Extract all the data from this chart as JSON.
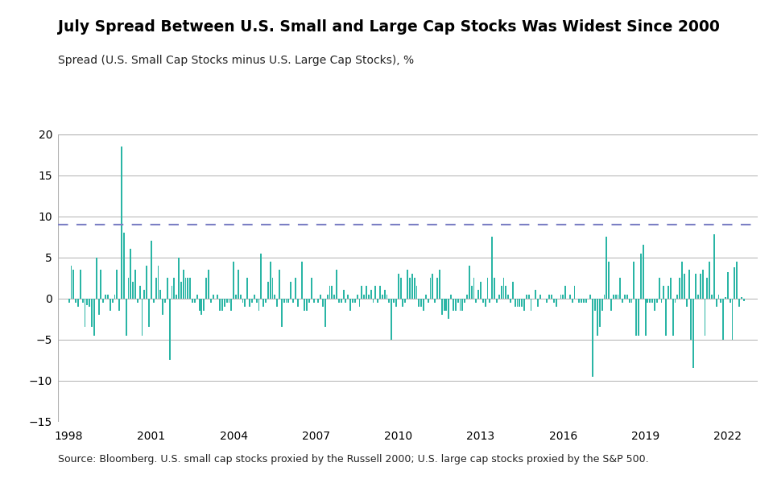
{
  "title": "July Spread Between U.S. Small and Large Cap Stocks Was Widest Since 2000",
  "subtitle": "Spread (U.S. Small Cap Stocks minus U.S. Large Cap Stocks), %",
  "source": "Source: Bloomberg. U.S. small cap stocks proxied by the Russell 2000; U.S. large cap stocks proxied by the S&P 500.",
  "dashed_line_value": 9.0,
  "ylim": [
    -15,
    20
  ],
  "yticks": [
    -15,
    -10,
    -5,
    0,
    5,
    10,
    15,
    20
  ],
  "xtick_years": [
    1998,
    2001,
    2004,
    2007,
    2010,
    2013,
    2016,
    2019,
    2022
  ],
  "bar_color": "#2ab5a5",
  "dashed_line_color": "#7b7fc4",
  "bg_color": "#ffffff",
  "grid_color": "#b0b0b0",
  "title_fontsize": 13.5,
  "subtitle_fontsize": 10,
  "source_fontsize": 9,
  "start_year": 1998,
  "start_month": 1,
  "values": [
    -0.5,
    4.0,
    3.5,
    -0.5,
    -1.0,
    3.5,
    -0.5,
    -3.5,
    -0.8,
    -1.0,
    -3.5,
    -4.5,
    5.0,
    -2.0,
    3.5,
    -0.5,
    0.5,
    0.5,
    -1.5,
    -0.5,
    0.5,
    3.5,
    -1.5,
    18.5,
    8.0,
    -4.5,
    2.5,
    6.0,
    2.0,
    3.5,
    -0.5,
    1.5,
    -4.5,
    1.0,
    4.0,
    -3.5,
    7.0,
    -0.5,
    2.5,
    4.0,
    1.0,
    -2.0,
    -0.5,
    2.5,
    -7.5,
    1.5,
    2.5,
    0.5,
    5.0,
    2.0,
    3.5,
    2.5,
    2.5,
    2.5,
    -0.5,
    -0.5,
    0.5,
    -1.5,
    -2.0,
    -1.5,
    2.5,
    3.5,
    -0.5,
    0.5,
    0.0,
    0.5,
    -1.5,
    -1.5,
    -1.0,
    -0.5,
    -0.5,
    -1.5,
    4.5,
    0.5,
    3.5,
    0.5,
    -0.5,
    -1.0,
    2.5,
    -1.0,
    -0.5,
    0.5,
    -0.5,
    -1.5,
    5.5,
    -1.0,
    -0.5,
    2.0,
    4.5,
    2.5,
    0.5,
    -1.0,
    3.5,
    -3.5,
    -0.5,
    -0.5,
    -0.5,
    2.0,
    -0.5,
    2.5,
    -1.0,
    0.0,
    4.5,
    -1.5,
    -1.5,
    -0.5,
    2.5,
    -0.5,
    0.0,
    -0.5,
    0.5,
    -1.0,
    -3.5,
    0.5,
    1.5,
    1.5,
    0.5,
    3.5,
    -0.5,
    -0.5,
    1.0,
    -0.5,
    0.5,
    -1.5,
    -0.5,
    -0.5,
    0.5,
    -1.0,
    1.5,
    0.5,
    1.5,
    0.5,
    1.0,
    -0.5,
    1.5,
    -0.5,
    1.5,
    0.5,
    1.0,
    0.5,
    -0.5,
    -5.0,
    -0.5,
    -1.0,
    3.0,
    2.5,
    -1.0,
    -0.5,
    3.5,
    2.5,
    3.0,
    2.5,
    1.5,
    -1.0,
    -1.0,
    -1.5,
    0.5,
    -0.5,
    2.5,
    3.0,
    -0.5,
    2.5,
    3.5,
    -2.0,
    -1.5,
    -1.5,
    -2.5,
    0.5,
    -1.5,
    -1.5,
    -0.5,
    -1.5,
    -1.5,
    -0.5,
    0.5,
    4.0,
    1.5,
    2.5,
    -0.5,
    1.0,
    2.0,
    -0.5,
    -1.0,
    2.5,
    -0.5,
    7.5,
    2.5,
    -0.5,
    0.5,
    1.5,
    2.5,
    1.5,
    0.5,
    -0.5,
    2.0,
    -1.0,
    -1.0,
    -1.0,
    -1.0,
    -1.5,
    0.5,
    0.5,
    -1.5,
    0.0,
    1.0,
    -1.0,
    0.5,
    0.0,
    0.0,
    -0.5,
    0.5,
    0.5,
    -0.5,
    -1.0,
    0.0,
    0.5,
    0.5,
    1.5,
    0.0,
    0.5,
    -0.5,
    1.5,
    0.0,
    -0.5,
    -0.5,
    -0.5,
    -0.5,
    0.0,
    0.5,
    -9.5,
    -1.5,
    -4.5,
    -3.5,
    -1.5,
    0.5,
    7.5,
    4.5,
    -1.5,
    0.5,
    0.5,
    0.5,
    2.5,
    -0.5,
    0.5,
    0.5,
    -0.5,
    -0.5,
    4.5,
    -4.5,
    -4.5,
    5.5,
    6.5,
    -4.5,
    -0.5,
    -0.5,
    -0.5,
    -1.5,
    -0.5,
    2.5,
    -0.5,
    1.5,
    -4.5,
    1.5,
    2.5,
    -4.5,
    -0.5,
    0.5,
    2.5,
    4.5,
    3.0,
    -1.0,
    3.5,
    -5.0,
    -8.5,
    3.0,
    0.5,
    3.0,
    3.5,
    -4.5,
    2.5,
    4.5,
    0.5,
    7.8,
    -1.0,
    0.5,
    -0.5,
    -5.0,
    0.2,
    3.2,
    -0.5,
    -5.0,
    3.8,
    4.5,
    -1.0,
    0.2,
    -0.3
  ]
}
